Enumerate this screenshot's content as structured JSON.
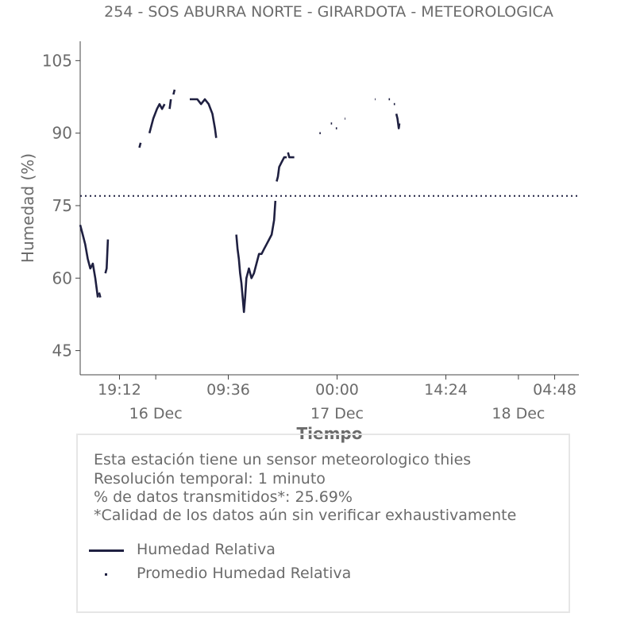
{
  "chart_data": {
    "type": "line",
    "title": "254 - SOS ABURRA NORTE - GIRARDOTA - METEOROLOGICA",
    "xlabel": "Tiempo",
    "ylabel": "Humedad (%)",
    "ylim": [
      40,
      109
    ],
    "xlim": [
      "2024-12-15 14:00",
      "2024-12-18 08:00"
    ],
    "yticks": [
      "45",
      "60",
      "75",
      "90",
      "105"
    ],
    "xticks_time": [
      {
        "t": "2024-12-15 19:12",
        "label": "19:12"
      },
      {
        "t": "2024-12-16 09:36",
        "label": "09:36"
      },
      {
        "t": "2024-12-17 00:00",
        "label": "00:00"
      },
      {
        "t": "2024-12-17 14:24",
        "label": "14:24"
      },
      {
        "t": "2024-12-18 04:48",
        "label": "04:48"
      }
    ],
    "xticks_date": [
      {
        "t": "2024-12-16 00:00",
        "label": "16 Dec"
      },
      {
        "t": "2024-12-17 00:00",
        "label": "17 Dec"
      },
      {
        "t": "2024-12-18 00:00",
        "label": "18 Dec"
      }
    ],
    "grid": false,
    "series": [
      {
        "name": "Humedad Relativa",
        "color": "#1f2041",
        "segments": [
          [
            [
              "2024-12-15 14:00",
              71
            ],
            [
              "2024-12-15 14:20",
              69
            ],
            [
              "2024-12-15 14:40",
              67
            ],
            [
              "2024-12-15 15:00",
              64
            ],
            [
              "2024-12-15 15:20",
              62
            ],
            [
              "2024-12-15 15:40",
              63
            ],
            [
              "2024-12-15 16:00",
              60
            ],
            [
              "2024-12-15 16:10",
              58
            ],
            [
              "2024-12-15 16:20",
              56
            ]
          ],
          [
            [
              "2024-12-15 16:30",
              57
            ],
            [
              "2024-12-15 16:40",
              56
            ]
          ],
          [
            [
              "2024-12-15 17:20",
              61
            ],
            [
              "2024-12-15 17:30",
              62
            ],
            [
              "2024-12-15 17:40",
              68
            ]
          ],
          [
            [
              "2024-12-15 21:50",
              87
            ],
            [
              "2024-12-15 22:00",
              88
            ]
          ],
          [
            [
              "2024-12-15 23:10",
              90
            ],
            [
              "2024-12-15 23:20",
              91
            ],
            [
              "2024-12-15 23:40",
              93
            ],
            [
              "2024-12-16 00:10",
              95
            ],
            [
              "2024-12-16 00:30",
              96
            ],
            [
              "2024-12-16 00:50",
              95
            ],
            [
              "2024-12-16 01:10",
              96
            ]
          ],
          [
            [
              "2024-12-16 01:50",
              95
            ],
            [
              "2024-12-16 02:00",
              97
            ]
          ],
          [
            [
              "2024-12-16 02:20",
              98
            ],
            [
              "2024-12-16 02:30",
              99
            ]
          ],
          [
            [
              "2024-12-16 04:30",
              97
            ],
            [
              "2024-12-16 05:00",
              97
            ],
            [
              "2024-12-16 05:30",
              97
            ],
            [
              "2024-12-16 06:00",
              96
            ],
            [
              "2024-12-16 06:30",
              97
            ],
            [
              "2024-12-16 07:00",
              96
            ],
            [
              "2024-12-16 07:30",
              94
            ],
            [
              "2024-12-16 07:50",
              91
            ],
            [
              "2024-12-16 08:00",
              89
            ]
          ],
          [
            [
              "2024-12-16 10:40",
              69
            ],
            [
              "2024-12-16 10:50",
              66
            ],
            [
              "2024-12-16 11:00",
              64
            ],
            [
              "2024-12-16 11:10",
              61
            ],
            [
              "2024-12-16 11:20",
              59
            ],
            [
              "2024-12-16 11:30",
              56
            ],
            [
              "2024-12-16 11:40",
              53
            ],
            [
              "2024-12-16 11:50",
              56
            ],
            [
              "2024-12-16 12:00",
              60
            ],
            [
              "2024-12-16 12:20",
              62
            ],
            [
              "2024-12-16 12:40",
              60
            ],
            [
              "2024-12-16 13:00",
              61
            ],
            [
              "2024-12-16 13:20",
              63
            ],
            [
              "2024-12-16 13:40",
              65
            ],
            [
              "2024-12-16 14:00",
              65
            ],
            [
              "2024-12-16 14:20",
              66
            ],
            [
              "2024-12-16 14:40",
              67
            ],
            [
              "2024-12-16 15:00",
              68
            ],
            [
              "2024-12-16 15:20",
              69
            ],
            [
              "2024-12-16 15:40",
              72
            ],
            [
              "2024-12-16 15:50",
              76
            ]
          ],
          [
            [
              "2024-12-16 16:00",
              80
            ],
            [
              "2024-12-16 16:10",
              81
            ],
            [
              "2024-12-16 16:20",
              83
            ],
            [
              "2024-12-16 16:40",
              84
            ],
            [
              "2024-12-16 17:00",
              85
            ],
            [
              "2024-12-16 17:20",
              85
            ]
          ],
          [
            [
              "2024-12-16 17:30",
              86
            ],
            [
              "2024-12-16 17:40",
              85
            ],
            [
              "2024-12-16 18:20",
              85
            ]
          ],
          [
            [
              "2024-12-16 21:40",
              90
            ],
            [
              "2024-12-16 21:50",
              90
            ]
          ],
          [
            [
              "2024-12-16 23:10",
              92
            ],
            [
              "2024-12-16 23:20",
              92
            ]
          ],
          [
            [
              "2024-12-16 23:50",
              91
            ],
            [
              "2024-12-17 00:00",
              91
            ]
          ],
          [
            [
              "2024-12-17 01:00",
              93
            ],
            [
              "2024-12-17 01:05",
              93
            ]
          ],
          [
            [
              "2024-12-17 05:00",
              97
            ],
            [
              "2024-12-17 05:05",
              97
            ]
          ],
          [
            [
              "2024-12-17 06:50",
              97
            ],
            [
              "2024-12-17 07:00",
              97
            ]
          ],
          [
            [
              "2024-12-17 07:30",
              96
            ],
            [
              "2024-12-17 07:40",
              96
            ]
          ],
          [
            [
              "2024-12-17 07:50",
              94
            ],
            [
              "2024-12-17 08:00",
              93
            ],
            [
              "2024-12-17 08:10",
              91
            ],
            [
              "2024-12-17 08:15",
              92
            ]
          ]
        ]
      },
      {
        "name": "Promedio Humedad Relativa",
        "color": "#1f2041",
        "style": "dotted",
        "value": 77
      }
    ]
  },
  "info": {
    "line1": "Esta estación tiene un sensor meteorologico thies",
    "line2": "Resolución temporal: 1 minuto",
    "line3": "% de datos transmitidos*: 25.69%",
    "line4": "*Calidad de los datos aún sin verificar exhaustivamente"
  },
  "legend": {
    "item1": "Humedad Relativa",
    "item2": "Promedio Humedad Relativa"
  }
}
